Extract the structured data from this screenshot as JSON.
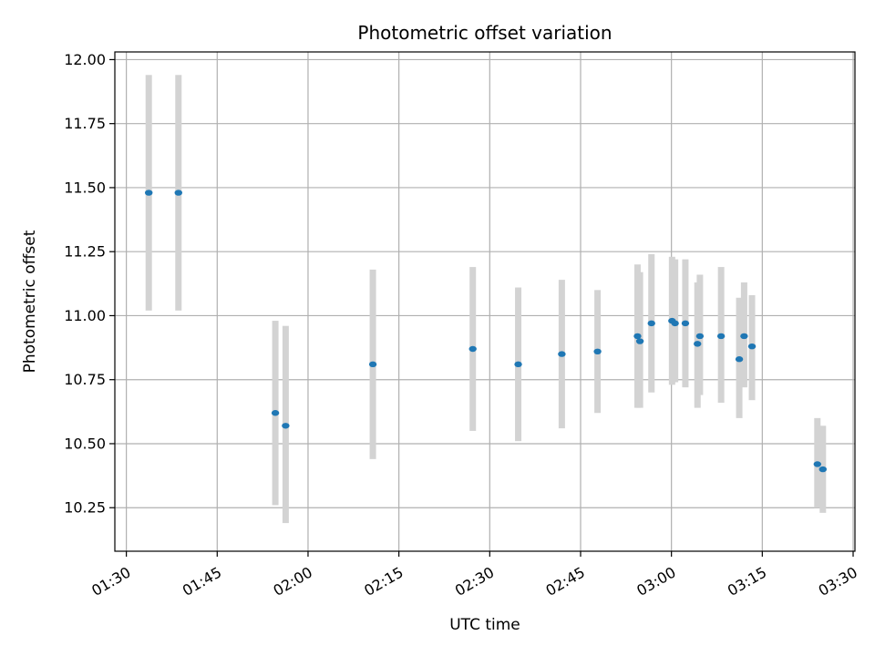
{
  "chart_data": {
    "type": "scatter",
    "title": "Photometric offset variation",
    "xlabel": "UTC time",
    "ylabel": "Photometric offset",
    "x_tick_labels": [
      "01:30",
      "01:45",
      "02:00",
      "02:15",
      "02:30",
      "02:45",
      "03:00",
      "03:15",
      "03:30"
    ],
    "y_tick_labels": [
      "10.25",
      "10.50",
      "10.75",
      "11.00",
      "11.25",
      "11.50",
      "11.75",
      "12.00"
    ],
    "xlim": [
      "01:28:06",
      "03:30:18"
    ],
    "ylim": [
      10.08,
      12.03
    ],
    "grid": true,
    "colors": {
      "point": "#1f77b4",
      "error_bar": "#d3d3d3",
      "grid": "#b0b0b0"
    },
    "points": [
      {
        "x": "01:33:42",
        "y": 11.48,
        "ylow": 11.02,
        "yhigh": 11.94
      },
      {
        "x": "01:38:36",
        "y": 11.48,
        "ylow": 11.02,
        "yhigh": 11.94
      },
      {
        "x": "01:54:36",
        "y": 10.62,
        "ylow": 10.26,
        "yhigh": 10.98
      },
      {
        "x": "01:56:18",
        "y": 10.57,
        "ylow": 10.19,
        "yhigh": 10.96
      },
      {
        "x": "02:10:42",
        "y": 10.81,
        "ylow": 10.44,
        "yhigh": 11.18
      },
      {
        "x": "02:27:12",
        "y": 10.87,
        "ylow": 10.55,
        "yhigh": 11.19
      },
      {
        "x": "02:34:42",
        "y": 10.81,
        "ylow": 10.51,
        "yhigh": 11.11
      },
      {
        "x": "02:41:54",
        "y": 10.85,
        "ylow": 10.56,
        "yhigh": 11.14
      },
      {
        "x": "02:47:48",
        "y": 10.86,
        "ylow": 10.62,
        "yhigh": 11.1
      },
      {
        "x": "02:54:24",
        "y": 10.92,
        "ylow": 10.64,
        "yhigh": 11.2
      },
      {
        "x": "02:54:48",
        "y": 10.9,
        "ylow": 10.64,
        "yhigh": 11.17
      },
      {
        "x": "02:56:42",
        "y": 10.97,
        "ylow": 10.7,
        "yhigh": 11.24
      },
      {
        "x": "03:00:06",
        "y": 10.98,
        "ylow": 10.73,
        "yhigh": 11.23
      },
      {
        "x": "03:00:36",
        "y": 10.97,
        "ylow": 10.74,
        "yhigh": 11.22
      },
      {
        "x": "03:02:18",
        "y": 10.97,
        "ylow": 10.72,
        "yhigh": 11.22
      },
      {
        "x": "03:04:18",
        "y": 10.89,
        "ylow": 10.64,
        "yhigh": 11.13
      },
      {
        "x": "03:04:42",
        "y": 10.92,
        "ylow": 10.69,
        "yhigh": 11.16
      },
      {
        "x": "03:08:12",
        "y": 10.92,
        "ylow": 10.66,
        "yhigh": 11.19
      },
      {
        "x": "03:11:12",
        "y": 10.83,
        "ylow": 10.6,
        "yhigh": 11.07
      },
      {
        "x": "03:12:00",
        "y": 10.92,
        "ylow": 10.72,
        "yhigh": 11.13
      },
      {
        "x": "03:13:18",
        "y": 10.88,
        "ylow": 10.67,
        "yhigh": 11.08
      },
      {
        "x": "03:24:06",
        "y": 10.42,
        "ylow": 10.25,
        "yhigh": 10.6
      },
      {
        "x": "03:25:00",
        "y": 10.4,
        "ylow": 10.23,
        "yhigh": 10.57
      }
    ]
  }
}
